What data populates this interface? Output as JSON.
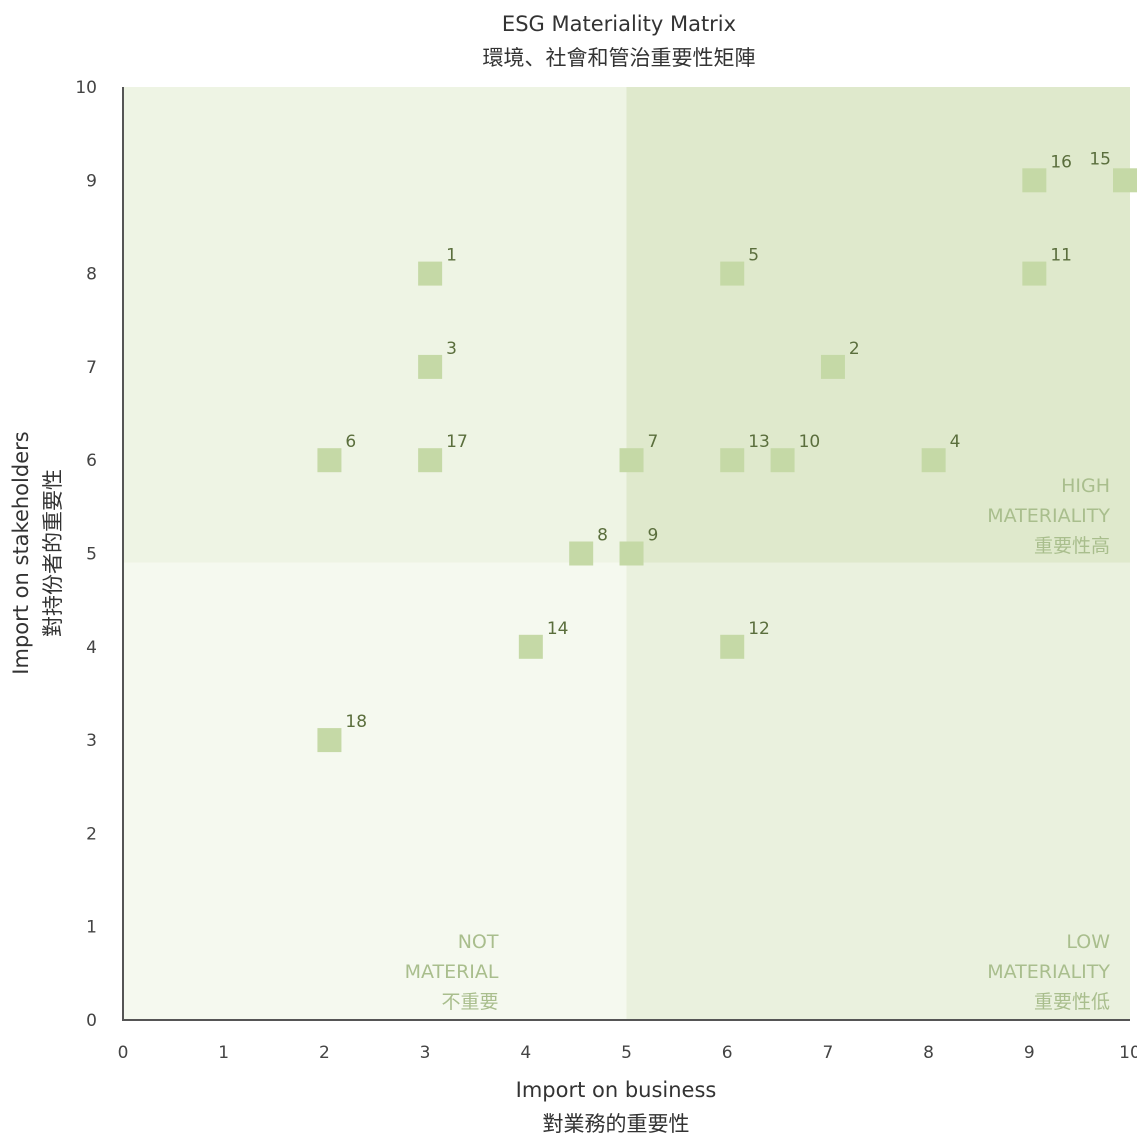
{
  "chart_data": {
    "type": "scatter",
    "title": "ESG Materiality Matrix",
    "subtitle": "環境、社會和管治重要性矩陣",
    "xlabel": "Import on business",
    "xlabel_zh": "對業務的重要性",
    "ylabel": "Import on stakeholders",
    "ylabel_zh": "對持份者的重要性",
    "xlim": [
      0,
      10
    ],
    "ylim": [
      0,
      10
    ],
    "x_ticks": [
      "0",
      "1",
      "2",
      "3",
      "4",
      "5",
      "6",
      "7",
      "8",
      "9",
      "10"
    ],
    "y_ticks": [
      "0",
      "1",
      "2",
      "3",
      "4",
      "5",
      "6",
      "7",
      "8",
      "9",
      "10"
    ],
    "grid": false,
    "marker": "square",
    "marker_color": "#c5d9a6",
    "quadrant_split": {
      "x": 5,
      "y": 4.9
    },
    "quadrants": [
      {
        "key": "high",
        "lines": [
          "HIGH",
          "MATERIALITY",
          "重要性高"
        ],
        "color": "#dfe9cc"
      },
      {
        "key": "upper-left",
        "lines": [],
        "color": "#eef4e4"
      },
      {
        "key": "not",
        "lines": [
          "NOT",
          "MATERIAL",
          "不重要"
        ],
        "color": "#f5f9ef"
      },
      {
        "key": "low",
        "lines": [
          "LOW",
          "MATERIALITY",
          "重要性低"
        ],
        "color": "#eaf1de"
      }
    ],
    "points": [
      {
        "label": "1",
        "x": 3.05,
        "y": 8
      },
      {
        "label": "2",
        "x": 7.05,
        "y": 7
      },
      {
        "label": "3",
        "x": 3.05,
        "y": 7
      },
      {
        "label": "4",
        "x": 8.05,
        "y": 6
      },
      {
        "label": "5",
        "x": 6.05,
        "y": 8
      },
      {
        "label": "6",
        "x": 2.05,
        "y": 6
      },
      {
        "label": "7",
        "x": 5.05,
        "y": 6
      },
      {
        "label": "8",
        "x": 4.55,
        "y": 5
      },
      {
        "label": "9",
        "x": 5.05,
        "y": 5
      },
      {
        "label": "10",
        "x": 6.55,
        "y": 6
      },
      {
        "label": "11",
        "x": 9.05,
        "y": 8
      },
      {
        "label": "12",
        "x": 6.05,
        "y": 4
      },
      {
        "label": "13",
        "x": 6.05,
        "y": 6
      },
      {
        "label": "14",
        "x": 4.05,
        "y": 4
      },
      {
        "label": "15",
        "x": 10,
        "y": 9
      },
      {
        "label": "16",
        "x": 9.05,
        "y": 9
      },
      {
        "label": "17",
        "x": 3.05,
        "y": 6
      },
      {
        "label": "18",
        "x": 2.05,
        "y": 3
      }
    ]
  }
}
